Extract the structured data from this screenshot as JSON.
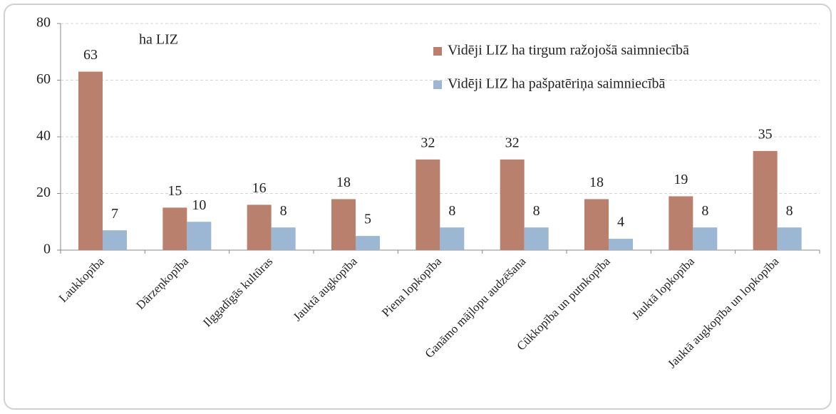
{
  "chart_data": {
    "type": "bar",
    "annotation": "ha LIZ",
    "categories": [
      "Laukkopība",
      "Dārzeņkopība",
      "Ilggadīgās kultūras",
      "Jauktā augkopība",
      "Piena lopkopība",
      "Ganāmo mājlopu audzēšana",
      "Cūkkopība un putnkopība",
      "Jauktā lopkopība",
      "Jauktā augkopība un lopkopība"
    ],
    "series": [
      {
        "name": "Vidēji LIZ ha tirgum ražojošā saimniecībā",
        "color": "#b9806e",
        "values": [
          63,
          15,
          16,
          18,
          32,
          32,
          18,
          19,
          35
        ]
      },
      {
        "name": "Vidēji LIZ ha pašpatēriņa saimniecībā",
        "color": "#9bb7d4",
        "values": [
          7,
          10,
          8,
          5,
          8,
          8,
          4,
          8,
          8
        ]
      }
    ],
    "ylim": [
      0,
      80
    ],
    "yticks": [
      0,
      20,
      40,
      60,
      80
    ],
    "grid": true,
    "legend": "top-right"
  }
}
